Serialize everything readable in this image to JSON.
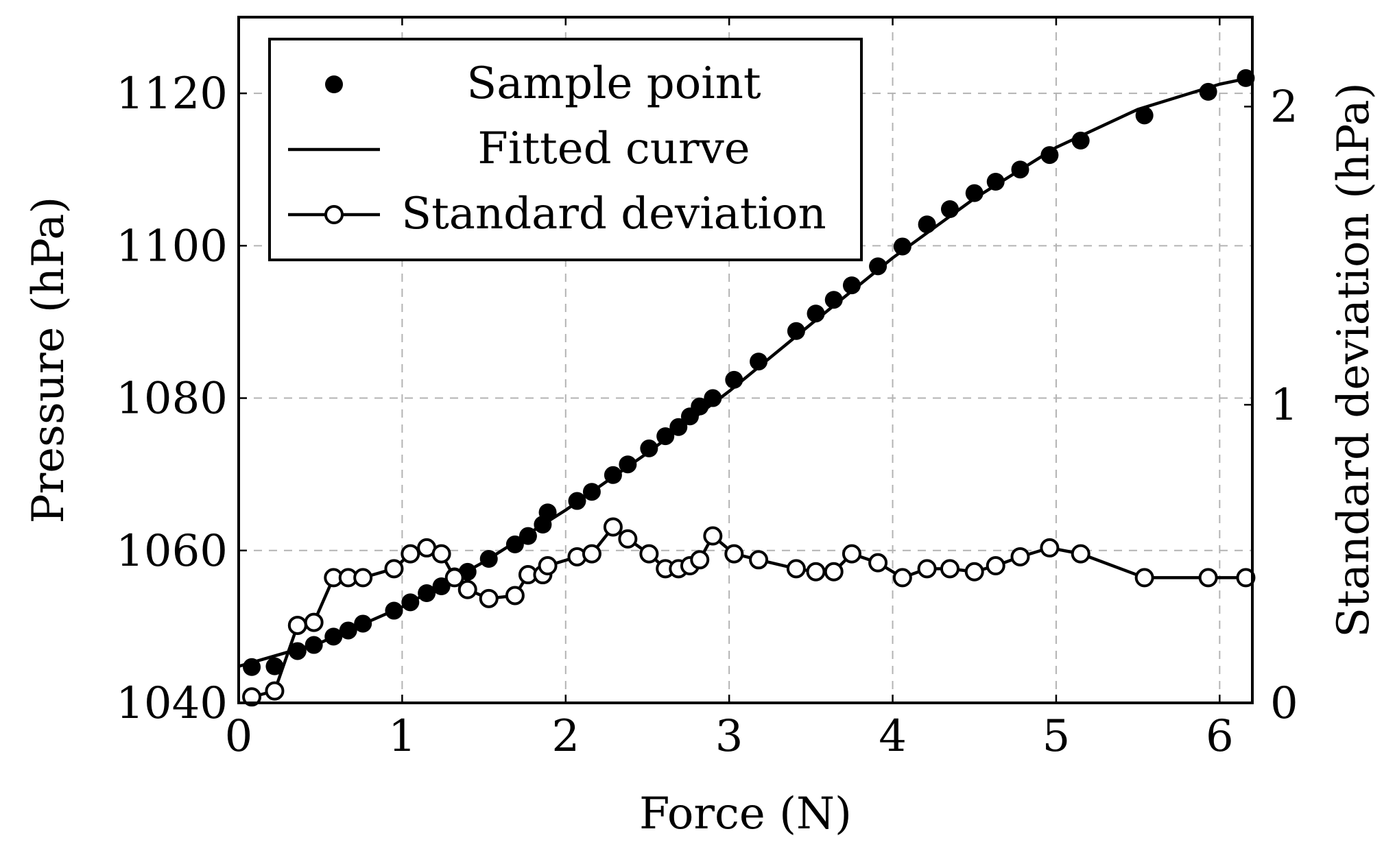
{
  "chart_data": {
    "type": "line",
    "xlabel": "Force (N)",
    "ylabel_left": "Pressure (hPa)",
    "ylabel_right": "Standard deviation (hPa)",
    "xlim": [
      0,
      6.2
    ],
    "ylim_left": [
      1040,
      1130
    ],
    "ylim_right": [
      0,
      2.3
    ],
    "x_ticks": [
      0,
      1,
      2,
      3,
      4,
      5,
      6
    ],
    "y_left_ticks": [
      1040,
      1060,
      1080,
      1100,
      1120
    ],
    "y_right_ticks": [
      0,
      1,
      2
    ],
    "grid": true,
    "legend": {
      "position": "top-left",
      "entries": [
        "Sample point",
        "Fitted curve",
        "Standard deviation"
      ]
    },
    "series": [
      {
        "name": "Sample point",
        "axis": "left",
        "style": "filled-marker",
        "x": [
          0.08,
          0.22,
          0.36,
          0.46,
          0.58,
          0.67,
          0.76,
          0.95,
          1.05,
          1.15,
          1.24,
          1.32,
          1.4,
          1.53,
          1.69,
          1.77,
          1.86,
          1.89,
          2.07,
          2.16,
          2.29,
          2.38,
          2.51,
          2.61,
          2.69,
          2.76,
          2.82,
          2.9,
          3.03,
          3.18,
          3.41,
          3.53,
          3.64,
          3.75,
          3.91,
          4.06,
          4.21,
          4.35,
          4.5,
          4.63,
          4.78,
          4.96,
          5.15,
          5.54,
          5.93,
          6.16
        ],
        "y": [
          1044.7,
          1044.8,
          1046.8,
          1047.6,
          1048.7,
          1049.5,
          1050.4,
          1052.1,
          1053.2,
          1054.4,
          1055.3,
          1056.6,
          1057.2,
          1058.9,
          1060.8,
          1061.9,
          1063.4,
          1065.0,
          1066.5,
          1067.7,
          1069.9,
          1071.3,
          1073.4,
          1075.0,
          1076.2,
          1077.6,
          1078.9,
          1080.0,
          1082.4,
          1084.8,
          1088.8,
          1091.1,
          1092.9,
          1094.8,
          1097.3,
          1099.9,
          1102.8,
          1104.8,
          1106.9,
          1108.4,
          1110.0,
          1111.9,
          1113.8,
          1117.1,
          1120.2,
          1122.0
        ]
      },
      {
        "name": "Fitted curve",
        "axis": "left",
        "style": "solid-line",
        "x": [
          0.0,
          0.5,
          1.0,
          1.5,
          2.0,
          2.5,
          3.0,
          3.5,
          4.0,
          4.5,
          5.0,
          5.5,
          6.0,
          6.2
        ],
        "y": [
          1044.8,
          1047.9,
          1052.6,
          1058.5,
          1065.3,
          1072.8,
          1080.9,
          1089.7,
          1098.4,
          1106.2,
          1112.9,
          1117.9,
          1121.2,
          1122.1
        ]
      },
      {
        "name": "Standard deviation",
        "axis": "right",
        "style": "line-open-marker",
        "x": [
          0.08,
          0.22,
          0.36,
          0.46,
          0.58,
          0.67,
          0.76,
          0.95,
          1.05,
          1.15,
          1.24,
          1.32,
          1.4,
          1.53,
          1.69,
          1.77,
          1.86,
          1.89,
          2.07,
          2.16,
          2.29,
          2.38,
          2.51,
          2.61,
          2.69,
          2.76,
          2.82,
          2.9,
          3.03,
          3.18,
          3.41,
          3.53,
          3.64,
          3.75,
          3.91,
          4.06,
          4.21,
          4.35,
          4.5,
          4.63,
          4.78,
          4.96,
          5.15,
          5.54,
          5.93,
          6.16
        ],
        "y": [
          0.02,
          0.04,
          0.26,
          0.27,
          0.42,
          0.42,
          0.42,
          0.45,
          0.5,
          0.52,
          0.5,
          0.42,
          0.38,
          0.35,
          0.36,
          0.43,
          0.43,
          0.46,
          0.49,
          0.5,
          0.59,
          0.55,
          0.5,
          0.45,
          0.45,
          0.46,
          0.48,
          0.56,
          0.5,
          0.48,
          0.45,
          0.44,
          0.44,
          0.5,
          0.47,
          0.42,
          0.45,
          0.45,
          0.44,
          0.46,
          0.49,
          0.52,
          0.5,
          0.42,
          0.42,
          0.42
        ]
      }
    ]
  }
}
